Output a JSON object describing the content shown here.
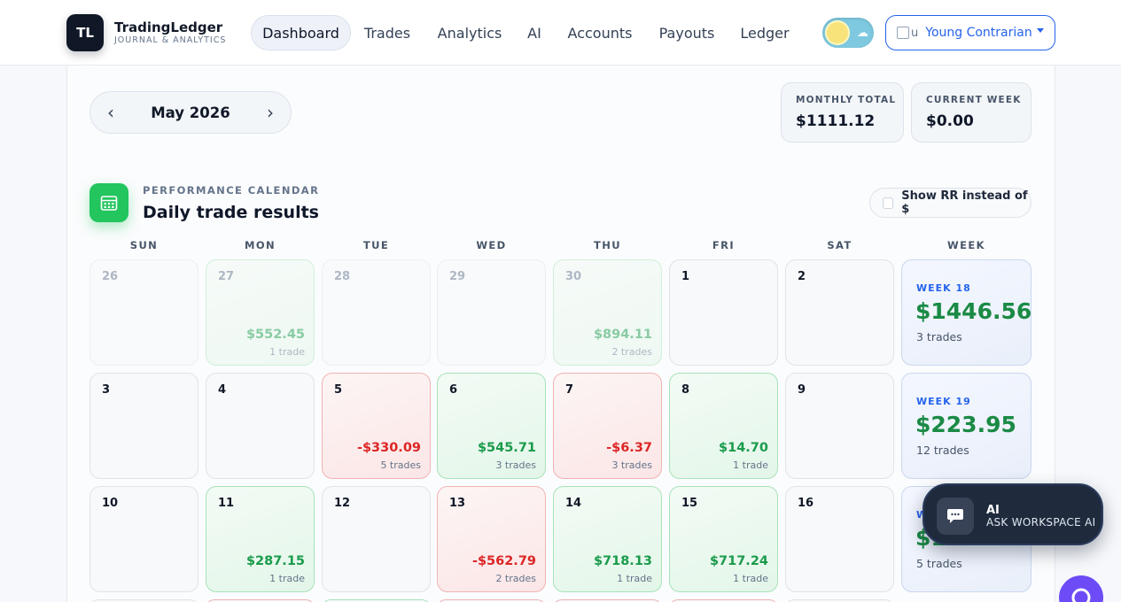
{
  "brand": {
    "initials": "TL",
    "name": "TradingLedger",
    "tagline": "JOURNAL & ANALYTICS"
  },
  "nav": [
    {
      "label": "Dashboard",
      "active": true
    },
    {
      "label": "Trades",
      "active": false
    },
    {
      "label": "Analytics",
      "active": false
    },
    {
      "label": "AI",
      "active": false
    },
    {
      "label": "Accounts",
      "active": false
    },
    {
      "label": "Payouts",
      "active": false
    },
    {
      "label": "Ledger",
      "active": false
    }
  ],
  "account": {
    "avatar_alt": "u",
    "name": "Young Contrarian"
  },
  "month": {
    "label": "May 2026"
  },
  "stats": {
    "monthly_total_label": "MONTHLY TOTAL",
    "monthly_total_value": "$1111.12",
    "current_week_label": "CURRENT WEEK",
    "current_week_value": "$0.00"
  },
  "calendar": {
    "eyebrow": "PERFORMANCE CALENDAR",
    "title": "Daily trade results",
    "rr_toggle_label": "Show RR instead of $",
    "rr_checked": false,
    "weekdays": [
      "SUN",
      "MON",
      "TUE",
      "WED",
      "THU",
      "FRI",
      "SAT",
      "WEEK"
    ],
    "weeks": [
      {
        "days": [
          {
            "num": "26",
            "muted": true,
            "tone": ""
          },
          {
            "num": "27",
            "muted": true,
            "tone": "green",
            "pnl": "$552.45",
            "trades": "1 trade"
          },
          {
            "num": "28",
            "muted": true,
            "tone": ""
          },
          {
            "num": "29",
            "muted": true,
            "tone": ""
          },
          {
            "num": "30",
            "muted": true,
            "tone": "green",
            "pnl": "$894.11",
            "trades": "2 trades"
          },
          {
            "num": "1",
            "muted": false,
            "tone": ""
          },
          {
            "num": "2",
            "muted": false,
            "tone": ""
          }
        ],
        "week": {
          "label": "WEEK 18",
          "total": "$1446.56",
          "trades": "3 trades"
        }
      },
      {
        "days": [
          {
            "num": "3",
            "muted": false,
            "tone": ""
          },
          {
            "num": "4",
            "muted": false,
            "tone": ""
          },
          {
            "num": "5",
            "muted": false,
            "tone": "red",
            "pnl": "-$330.09",
            "trades": "5 trades"
          },
          {
            "num": "6",
            "muted": false,
            "tone": "green",
            "pnl": "$545.71",
            "trades": "3 trades"
          },
          {
            "num": "7",
            "muted": false,
            "tone": "red",
            "pnl": "-$6.37",
            "trades": "3 trades"
          },
          {
            "num": "8",
            "muted": false,
            "tone": "green",
            "pnl": "$14.70",
            "trades": "1 trade"
          },
          {
            "num": "9",
            "muted": false,
            "tone": ""
          }
        ],
        "week": {
          "label": "WEEK 19",
          "total": "$223.95",
          "trades": "12 trades"
        }
      },
      {
        "days": [
          {
            "num": "10",
            "muted": false,
            "tone": ""
          },
          {
            "num": "11",
            "muted": false,
            "tone": "green",
            "pnl": "$287.15",
            "trades": "1 trade"
          },
          {
            "num": "12",
            "muted": false,
            "tone": ""
          },
          {
            "num": "13",
            "muted": false,
            "tone": "red",
            "pnl": "-$562.79",
            "trades": "2 trades"
          },
          {
            "num": "14",
            "muted": false,
            "tone": "green",
            "pnl": "$718.13",
            "trades": "1 trade"
          },
          {
            "num": "15",
            "muted": false,
            "tone": "green",
            "pnl": "$717.24",
            "trades": "1 trade"
          },
          {
            "num": "16",
            "muted": false,
            "tone": ""
          }
        ],
        "week": {
          "label": "W",
          "total": "$1",
          "trades": "5 trades"
        }
      }
    ]
  },
  "ai_fab": {
    "title": "AI",
    "subtitle": "ASK WORKSPACE AI",
    "icon": "chat-icon"
  },
  "chat_bubble": {
    "icon": "chat-bubble-icon",
    "color": "#6d4cf7"
  },
  "colors": {
    "positive": "#1a9b4b",
    "negative": "#dc2626",
    "accent": "#2563eb",
    "calendar_icon": "#22c55e"
  }
}
